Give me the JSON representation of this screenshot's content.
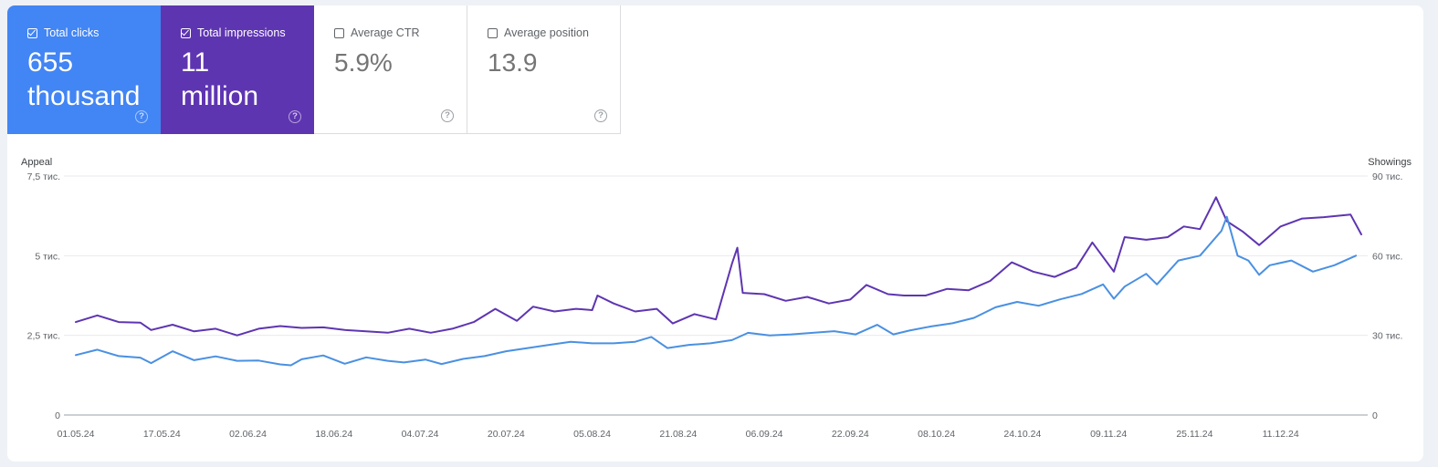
{
  "metrics": {
    "clicks": {
      "label": "Total clicks",
      "value_line1": "655",
      "value_line2": "thousand",
      "checked": true,
      "color": "#4285f4"
    },
    "impressions": {
      "label": "Total impressions",
      "value_line1": "11",
      "value_line2": "million",
      "checked": true,
      "color": "#5e35b1"
    },
    "ctr": {
      "label": "Average CTR",
      "value": "5.9%",
      "checked": false
    },
    "position": {
      "label": "Average position",
      "value": "13.9",
      "checked": false
    },
    "help_glyph": "?"
  },
  "chart_data": {
    "type": "line",
    "title": "",
    "left_axis": {
      "label": "Appeal",
      "ticks": [
        "0",
        "2,5 тис.",
        "5 тис.",
        "7,5 тис."
      ],
      "tick_values": [
        0,
        2500,
        5000,
        7500
      ],
      "ylim": [
        0,
        7500
      ]
    },
    "right_axis": {
      "label": "Showings",
      "ticks": [
        "0",
        "30 тис.",
        "60 тис.",
        "90 тис."
      ],
      "tick_values": [
        0,
        30000,
        60000,
        90000
      ],
      "ylim": [
        0,
        90000
      ]
    },
    "x_ticks": [
      "01.05.24",
      "17.05.24",
      "02.06.24",
      "18.06.24",
      "04.07.24",
      "20.07.24",
      "05.08.24",
      "21.08.24",
      "06.09.24",
      "22.09.24",
      "08.10.24",
      "24.10.24",
      "09.11.24",
      "25.11.24",
      "11.12.24"
    ],
    "x_range": [
      "2024-05-01",
      "2024-12-26"
    ],
    "grid": true,
    "series": [
      {
        "name": "Total clicks",
        "axis": "left",
        "color": "#4a90e2",
        "points": [
          [
            "2024-05-01",
            1880
          ],
          [
            "2024-05-05",
            2050
          ],
          [
            "2024-05-09",
            1850
          ],
          [
            "2024-05-13",
            1800
          ],
          [
            "2024-05-15",
            1630
          ],
          [
            "2024-05-19",
            2000
          ],
          [
            "2024-05-23",
            1720
          ],
          [
            "2024-05-27",
            1840
          ],
          [
            "2024-05-31",
            1700
          ],
          [
            "2024-06-04",
            1710
          ],
          [
            "2024-06-08",
            1590
          ],
          [
            "2024-06-10",
            1560
          ],
          [
            "2024-06-12",
            1750
          ],
          [
            "2024-06-16",
            1870
          ],
          [
            "2024-06-20",
            1610
          ],
          [
            "2024-06-24",
            1810
          ],
          [
            "2024-06-28",
            1700
          ],
          [
            "2024-07-01",
            1650
          ],
          [
            "2024-07-05",
            1740
          ],
          [
            "2024-07-08",
            1600
          ],
          [
            "2024-07-12",
            1760
          ],
          [
            "2024-07-16",
            1850
          ],
          [
            "2024-07-20",
            2000
          ],
          [
            "2024-07-24",
            2100
          ],
          [
            "2024-07-28",
            2200
          ],
          [
            "2024-08-01",
            2300
          ],
          [
            "2024-08-05",
            2250
          ],
          [
            "2024-08-09",
            2250
          ],
          [
            "2024-08-13",
            2300
          ],
          [
            "2024-08-16",
            2450
          ],
          [
            "2024-08-19",
            2100
          ],
          [
            "2024-08-23",
            2200
          ],
          [
            "2024-08-27",
            2250
          ],
          [
            "2024-08-31",
            2350
          ],
          [
            "2024-09-03",
            2580
          ],
          [
            "2024-09-07",
            2500
          ],
          [
            "2024-09-11",
            2530
          ],
          [
            "2024-09-15",
            2580
          ],
          [
            "2024-09-19",
            2630
          ],
          [
            "2024-09-23",
            2530
          ],
          [
            "2024-09-27",
            2830
          ],
          [
            "2024-09-30",
            2530
          ],
          [
            "2024-10-03",
            2650
          ],
          [
            "2024-10-07",
            2780
          ],
          [
            "2024-10-11",
            2880
          ],
          [
            "2024-10-15",
            3050
          ],
          [
            "2024-10-19",
            3380
          ],
          [
            "2024-10-23",
            3550
          ],
          [
            "2024-10-27",
            3430
          ],
          [
            "2024-10-31",
            3630
          ],
          [
            "2024-11-04",
            3800
          ],
          [
            "2024-11-08",
            4100
          ],
          [
            "2024-11-10",
            3650
          ],
          [
            "2024-11-12",
            4030
          ],
          [
            "2024-11-16",
            4430
          ],
          [
            "2024-11-18",
            4100
          ],
          [
            "2024-11-22",
            4850
          ],
          [
            "2024-11-26",
            5000
          ],
          [
            "2024-11-30",
            5780
          ],
          [
            "2024-12-01",
            6220
          ],
          [
            "2024-12-03",
            5000
          ],
          [
            "2024-12-05",
            4850
          ],
          [
            "2024-12-07",
            4400
          ],
          [
            "2024-12-09",
            4700
          ],
          [
            "2024-12-13",
            4850
          ],
          [
            "2024-12-17",
            4500
          ],
          [
            "2024-12-21",
            4700
          ],
          [
            "2024-12-25",
            5000
          ]
        ]
      },
      {
        "name": "Total impressions",
        "axis": "right",
        "color": "#5e35b1",
        "points": [
          [
            "2024-05-01",
            35000
          ],
          [
            "2024-05-05",
            37500
          ],
          [
            "2024-05-09",
            35000
          ],
          [
            "2024-05-13",
            34800
          ],
          [
            "2024-05-15",
            32000
          ],
          [
            "2024-05-19",
            34000
          ],
          [
            "2024-05-23",
            31500
          ],
          [
            "2024-05-27",
            32500
          ],
          [
            "2024-05-31",
            30000
          ],
          [
            "2024-06-04",
            32500
          ],
          [
            "2024-06-08",
            33500
          ],
          [
            "2024-06-12",
            32800
          ],
          [
            "2024-06-16",
            33000
          ],
          [
            "2024-06-20",
            32000
          ],
          [
            "2024-06-24",
            31500
          ],
          [
            "2024-06-28",
            31000
          ],
          [
            "2024-07-02",
            32500
          ],
          [
            "2024-07-06",
            31000
          ],
          [
            "2024-07-10",
            32500
          ],
          [
            "2024-07-14",
            35000
          ],
          [
            "2024-07-18",
            40000
          ],
          [
            "2024-07-22",
            35500
          ],
          [
            "2024-07-25",
            40800
          ],
          [
            "2024-07-29",
            39000
          ],
          [
            "2024-08-02",
            40000
          ],
          [
            "2024-08-05",
            39500
          ],
          [
            "2024-08-06",
            45000
          ],
          [
            "2024-08-09",
            42000
          ],
          [
            "2024-08-13",
            39000
          ],
          [
            "2024-08-17",
            40000
          ],
          [
            "2024-08-20",
            34500
          ],
          [
            "2024-08-24",
            38000
          ],
          [
            "2024-08-28",
            36000
          ],
          [
            "2024-08-31",
            57000
          ],
          [
            "2024-09-01",
            63000
          ],
          [
            "2024-09-02",
            46000
          ],
          [
            "2024-09-06",
            45500
          ],
          [
            "2024-09-10",
            43000
          ],
          [
            "2024-09-14",
            44500
          ],
          [
            "2024-09-18",
            42000
          ],
          [
            "2024-09-22",
            43500
          ],
          [
            "2024-09-25",
            49000
          ],
          [
            "2024-09-29",
            45500
          ],
          [
            "2024-10-02",
            45000
          ],
          [
            "2024-10-06",
            45000
          ],
          [
            "2024-10-10",
            47500
          ],
          [
            "2024-10-14",
            47000
          ],
          [
            "2024-10-18",
            50500
          ],
          [
            "2024-10-22",
            57500
          ],
          [
            "2024-10-26",
            54000
          ],
          [
            "2024-10-30",
            52000
          ],
          [
            "2024-11-03",
            55500
          ],
          [
            "2024-11-06",
            65000
          ],
          [
            "2024-11-10",
            54000
          ],
          [
            "2024-11-12",
            67000
          ],
          [
            "2024-11-16",
            66000
          ],
          [
            "2024-11-20",
            67000
          ],
          [
            "2024-11-23",
            71000
          ],
          [
            "2024-11-26",
            70000
          ],
          [
            "2024-11-29",
            82000
          ],
          [
            "2024-12-01",
            73000
          ],
          [
            "2024-12-04",
            69000
          ],
          [
            "2024-12-07",
            64000
          ],
          [
            "2024-12-11",
            71000
          ],
          [
            "2024-12-15",
            74000
          ],
          [
            "2024-12-19",
            74500
          ],
          [
            "2024-12-24",
            75500
          ],
          [
            "2024-12-26",
            68000
          ]
        ]
      }
    ]
  }
}
